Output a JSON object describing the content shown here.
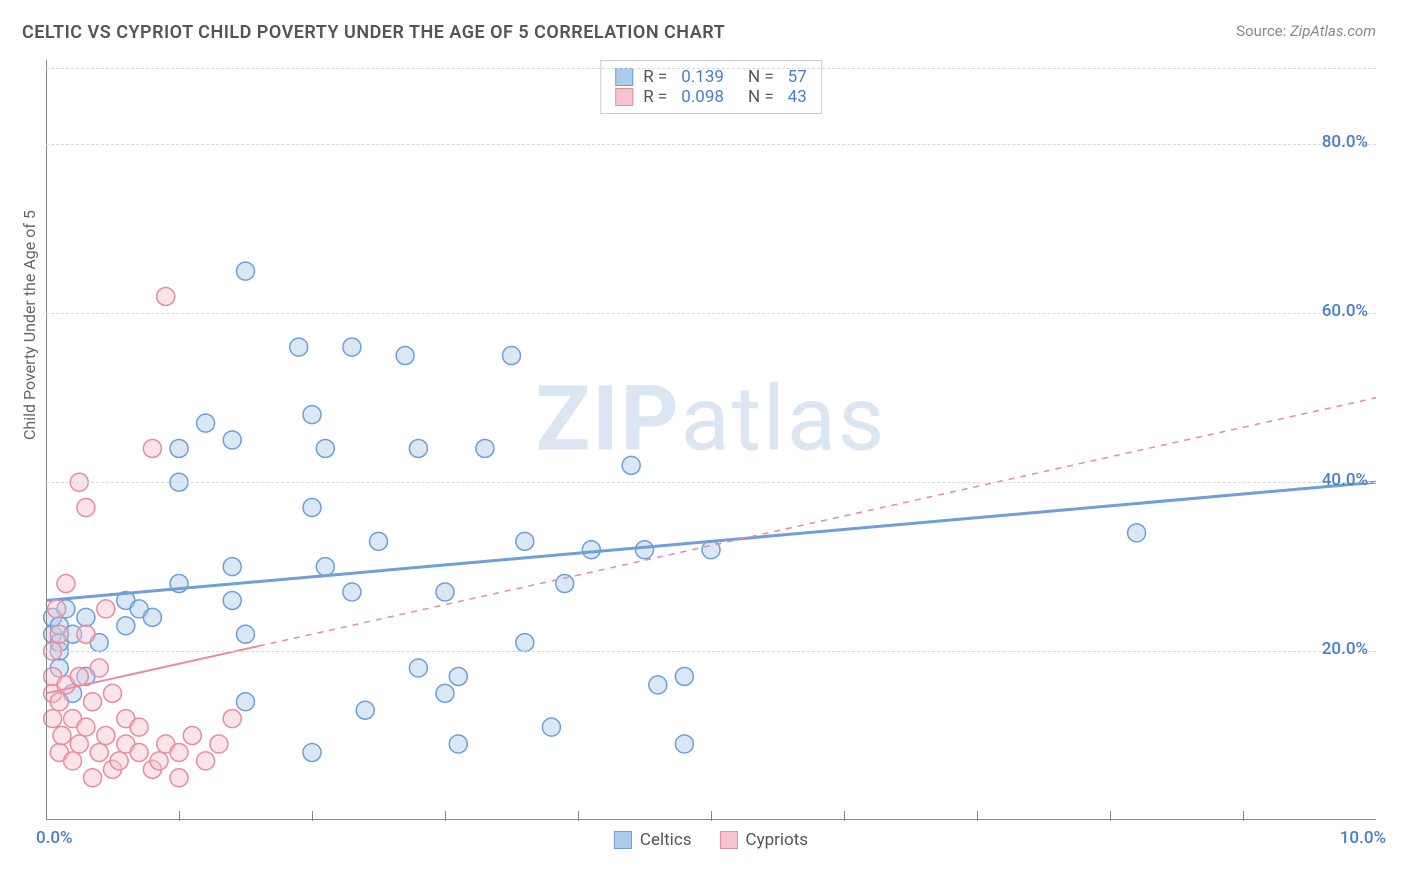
{
  "title": "CELTIC VS CYPRIOT CHILD POVERTY UNDER THE AGE OF 5 CORRELATION CHART",
  "source_label": "Source:",
  "source_value": "ZipAtlas.com",
  "ylabel": "Child Poverty Under the Age of 5",
  "watermark_bold": "ZIP",
  "watermark_rest": "atlas",
  "chart": {
    "type": "scatter",
    "xlim": [
      0,
      10
    ],
    "ylim": [
      0,
      90
    ],
    "ytick_step": 20,
    "ytick_labels": [
      "20.0%",
      "40.0%",
      "60.0%",
      "80.0%"
    ],
    "xtick_labels": {
      "left": "0.0%",
      "right": "10.0%"
    },
    "xtick_minor_positions": [
      1,
      2,
      3,
      4,
      5,
      6,
      7,
      8,
      9
    ],
    "background_color": "#ffffff",
    "grid_color": "#d8d8d8",
    "axis_color": "#888888",
    "ytick_color": "#4a7ec9",
    "watermark_color": "#dce6f2",
    "point_radius": 9,
    "point_opacity": 0.45,
    "series": [
      {
        "name": "Celtics",
        "color_fill": "#aecbec",
        "color_stroke": "#6d9fd9",
        "trend": {
          "x1": 0,
          "y1": 26,
          "x2": 10,
          "y2": 40,
          "solid_to_x": 10,
          "width": 3
        },
        "R": 0.139,
        "N": 57,
        "points": [
          [
            0.05,
            22
          ],
          [
            0.05,
            24
          ],
          [
            0.1,
            20
          ],
          [
            0.1,
            18
          ],
          [
            0.1,
            21
          ],
          [
            0.1,
            23
          ],
          [
            0.15,
            25
          ],
          [
            0.2,
            22
          ],
          [
            0.2,
            15
          ],
          [
            0.3,
            17
          ],
          [
            0.3,
            24
          ],
          [
            0.4,
            21
          ],
          [
            0.6,
            23
          ],
          [
            0.6,
            26
          ],
          [
            0.7,
            25
          ],
          [
            0.8,
            24
          ],
          [
            1.0,
            44
          ],
          [
            1.0,
            28
          ],
          [
            1.0,
            40
          ],
          [
            1.2,
            47
          ],
          [
            1.4,
            30
          ],
          [
            1.4,
            45
          ],
          [
            1.4,
            26
          ],
          [
            1.5,
            65
          ],
          [
            1.5,
            14
          ],
          [
            1.5,
            22
          ],
          [
            1.9,
            56
          ],
          [
            2.0,
            37
          ],
          [
            2.0,
            48
          ],
          [
            2.0,
            8
          ],
          [
            2.1,
            30
          ],
          [
            2.1,
            44
          ],
          [
            2.3,
            56
          ],
          [
            2.3,
            27
          ],
          [
            2.4,
            13
          ],
          [
            2.5,
            33
          ],
          [
            2.7,
            55
          ],
          [
            2.8,
            18
          ],
          [
            2.8,
            44
          ],
          [
            3.0,
            15
          ],
          [
            3.0,
            27
          ],
          [
            3.1,
            9
          ],
          [
            3.1,
            17
          ],
          [
            3.3,
            44
          ],
          [
            3.5,
            55
          ],
          [
            3.6,
            21
          ],
          [
            3.6,
            33
          ],
          [
            3.8,
            11
          ],
          [
            3.9,
            28
          ],
          [
            4.1,
            32
          ],
          [
            4.4,
            42
          ],
          [
            4.5,
            32
          ],
          [
            4.6,
            16
          ],
          [
            4.8,
            9
          ],
          [
            4.8,
            17
          ],
          [
            5.0,
            32
          ],
          [
            8.2,
            34
          ]
        ]
      },
      {
        "name": "Cypriots",
        "color_fill": "#f4c4cf",
        "color_stroke": "#e98ba1",
        "trend": {
          "x1": 0,
          "y1": 15,
          "x2": 10,
          "y2": 50,
          "solid_to_x": 1.6,
          "width": 2
        },
        "R": 0.098,
        "N": 43,
        "points": [
          [
            0.05,
            15
          ],
          [
            0.05,
            17
          ],
          [
            0.05,
            12
          ],
          [
            0.05,
            20
          ],
          [
            0.08,
            25
          ],
          [
            0.1,
            14
          ],
          [
            0.1,
            8
          ],
          [
            0.1,
            22
          ],
          [
            0.12,
            10
          ],
          [
            0.15,
            28
          ],
          [
            0.15,
            16
          ],
          [
            0.2,
            7
          ],
          [
            0.2,
            12
          ],
          [
            0.25,
            9
          ],
          [
            0.25,
            17
          ],
          [
            0.25,
            40
          ],
          [
            0.3,
            11
          ],
          [
            0.3,
            22
          ],
          [
            0.3,
            37
          ],
          [
            0.35,
            5
          ],
          [
            0.35,
            14
          ],
          [
            0.4,
            8
          ],
          [
            0.4,
            18
          ],
          [
            0.45,
            10
          ],
          [
            0.45,
            25
          ],
          [
            0.5,
            6
          ],
          [
            0.5,
            15
          ],
          [
            0.55,
            7
          ],
          [
            0.6,
            9
          ],
          [
            0.6,
            12
          ],
          [
            0.7,
            8
          ],
          [
            0.7,
            11
          ],
          [
            0.8,
            6
          ],
          [
            0.8,
            44
          ],
          [
            0.85,
            7
          ],
          [
            0.9,
            62
          ],
          [
            0.9,
            9
          ],
          [
            1.0,
            5
          ],
          [
            1.0,
            8
          ],
          [
            1.1,
            10
          ],
          [
            1.2,
            7
          ],
          [
            1.3,
            9
          ],
          [
            1.4,
            12
          ]
        ]
      }
    ]
  },
  "legend_top": {
    "rows": [
      {
        "series": 0,
        "R_label": "R =",
        "R_value": "0.139",
        "N_label": "N =",
        "N_value": "57"
      },
      {
        "series": 1,
        "R_label": "R =",
        "R_value": "0.098",
        "N_label": "N =",
        "N_value": "43"
      }
    ]
  },
  "legend_bottom": {
    "items": [
      {
        "series": 0,
        "label": "Celtics"
      },
      {
        "series": 1,
        "label": "Cypriots"
      }
    ]
  }
}
